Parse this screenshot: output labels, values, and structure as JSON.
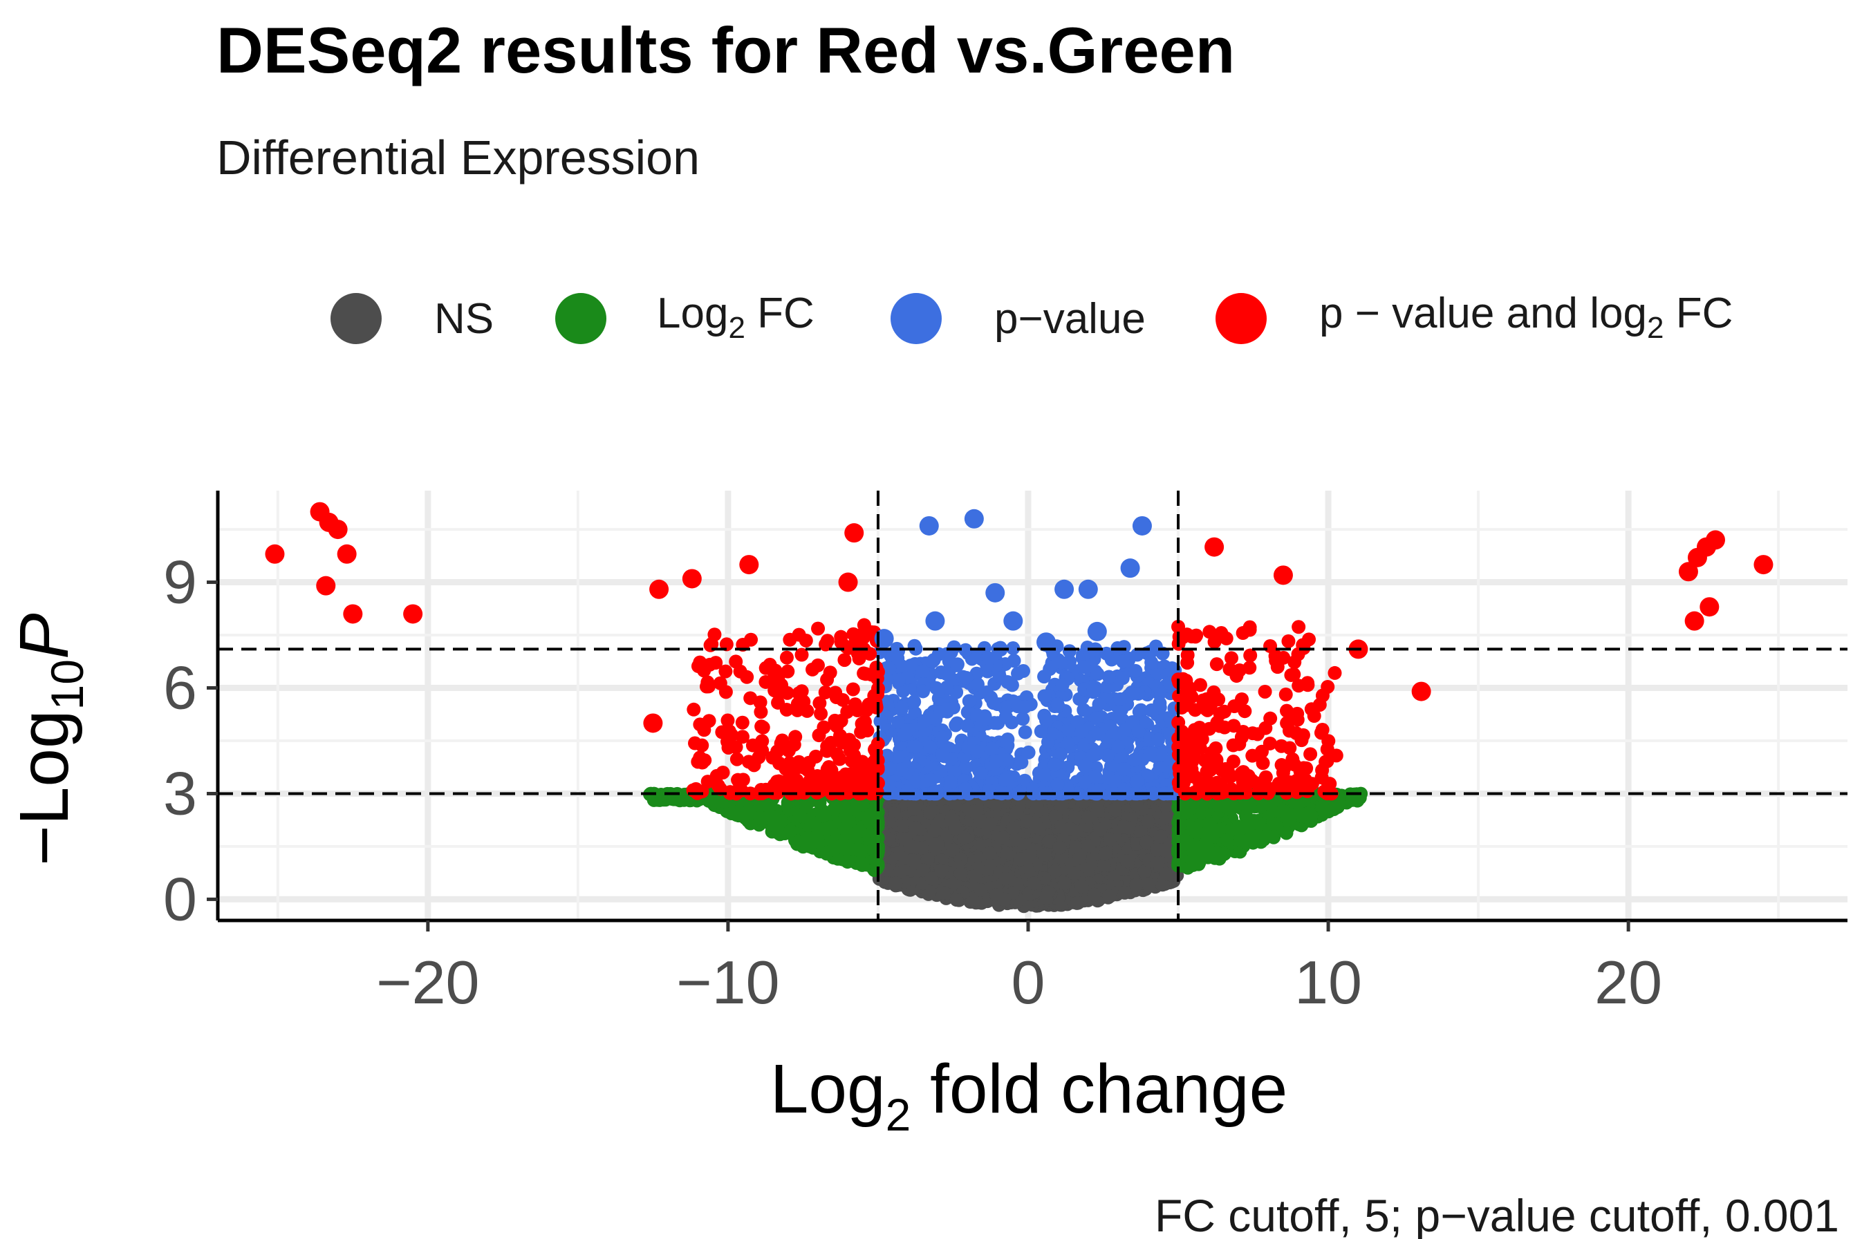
{
  "chart_data": {
    "type": "scatter",
    "title": "DESeq2 results for Red vs.Green",
    "subtitle": "Differential Expression",
    "xlabel": {
      "base": "Log",
      "sub": "2",
      "rest": " fold change"
    },
    "ylabel": {
      "prefix": "−Log",
      "sub": "10",
      "var": "P"
    },
    "caption": "FC cutoff, 5; p−value cutoff, 0.001",
    "xlim": [
      -27,
      27.3
    ],
    "ylim": [
      -0.6,
      11.6
    ],
    "x_ticks": [
      -20,
      -10,
      0,
      10,
      20
    ],
    "x_tick_labels": [
      "−20",
      "−10",
      "0",
      "10",
      "20"
    ],
    "y_ticks": [
      0,
      3,
      6,
      9
    ],
    "y_tick_labels": [
      "0",
      "3",
      "6",
      "9"
    ],
    "fc_cutoff": 5,
    "p_cutoff_neglog10": 3,
    "cutoff_lines": {
      "vertical": [
        -5,
        5
      ],
      "horizontal": [
        3,
        7.1
      ]
    },
    "grid": true,
    "legend": {
      "position": "top",
      "entries": [
        {
          "key": "ns",
          "label": "NS",
          "color": "#4d4d4d"
        },
        {
          "key": "fc",
          "label_base": "Log",
          "label_sub": "2",
          "label_rest": " FC",
          "color": "#1a8a1a"
        },
        {
          "key": "p",
          "label": "p−value",
          "color": "#3d6fe0"
        },
        {
          "key": "both",
          "label_base": "p − value and log",
          "label_sub": "2",
          "label_rest": " FC",
          "color": "#ff0000"
        }
      ]
    },
    "series": [
      {
        "name": "NS",
        "color": "#4d4d4d",
        "region": "|log2FC| < 5, -log10P < 3 (dense cloud)"
      },
      {
        "name": "Log2 FC",
        "color": "#1a8a1a",
        "region": "|log2FC| > 5, -log10P < 3 (dense)"
      },
      {
        "name": "p-value",
        "color": "#3d6fe0",
        "region": "|log2FC| < 5, -log10P > 3"
      },
      {
        "name": "p-value and log2 FC",
        "color": "#ff0000",
        "region": "|log2FC| > 5, -log10P > 3"
      }
    ],
    "highlight_points": [
      {
        "series": "p-value and log2 FC",
        "x": -25.1,
        "y": 9.8
      },
      {
        "series": "p-value and log2 FC",
        "x": -23.6,
        "y": 11.0
      },
      {
        "series": "p-value and log2 FC",
        "x": -23.3,
        "y": 10.7
      },
      {
        "series": "p-value and log2 FC",
        "x": -23.0,
        "y": 10.5
      },
      {
        "series": "p-value and log2 FC",
        "x": -22.7,
        "y": 9.8
      },
      {
        "series": "p-value and log2 FC",
        "x": -23.4,
        "y": 8.9
      },
      {
        "series": "p-value and log2 FC",
        "x": -22.5,
        "y": 8.1
      },
      {
        "series": "p-value and log2 FC",
        "x": -20.5,
        "y": 8.1
      },
      {
        "series": "p-value and log2 FC",
        "x": 22.0,
        "y": 9.3
      },
      {
        "series": "p-value and log2 FC",
        "x": 22.3,
        "y": 9.7
      },
      {
        "series": "p-value and log2 FC",
        "x": 22.6,
        "y": 10.0
      },
      {
        "series": "p-value and log2 FC",
        "x": 22.9,
        "y": 10.2
      },
      {
        "series": "p-value and log2 FC",
        "x": 24.5,
        "y": 9.5
      },
      {
        "series": "p-value and log2 FC",
        "x": 22.2,
        "y": 7.9
      },
      {
        "series": "p-value and log2 FC",
        "x": 22.7,
        "y": 8.3
      },
      {
        "series": "p-value and log2 FC",
        "x": -12.5,
        "y": 5.0
      },
      {
        "series": "p-value and log2 FC",
        "x": -12.3,
        "y": 8.8
      },
      {
        "series": "p-value and log2 FC",
        "x": -11.2,
        "y": 9.1
      },
      {
        "series": "p-value and log2 FC",
        "x": -9.3,
        "y": 9.5
      },
      {
        "series": "p-value and log2 FC",
        "x": -5.8,
        "y": 10.4
      },
      {
        "series": "p-value and log2 FC",
        "x": -6.0,
        "y": 9.0
      },
      {
        "series": "p-value and log2 FC",
        "x": 6.2,
        "y": 10.0
      },
      {
        "series": "p-value and log2 FC",
        "x": 8.5,
        "y": 9.2
      },
      {
        "series": "p-value and log2 FC",
        "x": 13.1,
        "y": 5.9
      },
      {
        "series": "p-value and log2 FC",
        "x": 11.0,
        "y": 7.1
      },
      {
        "series": "p-value",
        "x": -3.3,
        "y": 10.6
      },
      {
        "series": "p-value",
        "x": -1.8,
        "y": 10.8
      },
      {
        "series": "p-value",
        "x": 3.8,
        "y": 10.6
      },
      {
        "series": "p-value",
        "x": 3.4,
        "y": 9.4
      },
      {
        "series": "p-value",
        "x": -1.1,
        "y": 8.7
      },
      {
        "series": "p-value",
        "x": 1.2,
        "y": 8.8
      },
      {
        "series": "p-value",
        "x": 2.0,
        "y": 8.8
      },
      {
        "series": "p-value",
        "x": -3.1,
        "y": 7.9
      },
      {
        "series": "p-value",
        "x": -0.5,
        "y": 7.9
      },
      {
        "series": "p-value",
        "x": 2.3,
        "y": 7.6
      },
      {
        "series": "p-value",
        "x": 0.6,
        "y": 7.3
      },
      {
        "series": "p-value",
        "x": -4.8,
        "y": 7.4
      }
    ]
  }
}
